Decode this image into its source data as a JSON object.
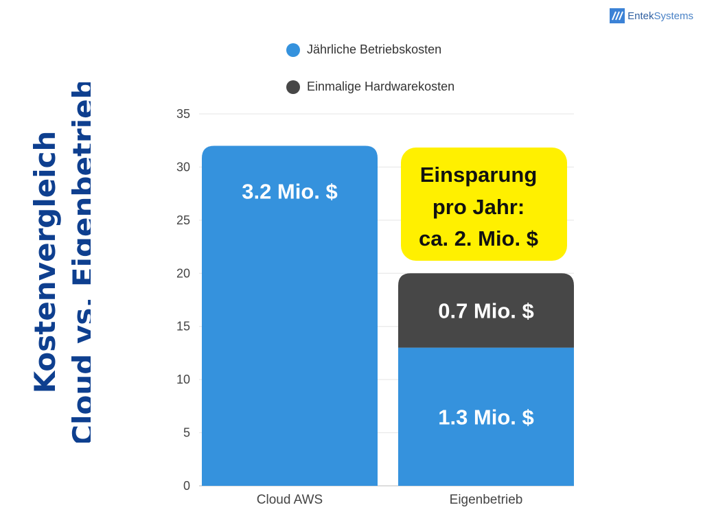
{
  "brand": {
    "logo_part1": "Entek",
    "logo_part2": "Systems"
  },
  "title": {
    "line1": "Kostenvergleich",
    "line2": "Cloud vs. Eigenbetrieb"
  },
  "colors": {
    "blue": "#3592dd",
    "dark": "#474747",
    "highlight": "#fff000",
    "title": "#0e3f8f"
  },
  "chart_data": {
    "type": "bar",
    "stacked": true,
    "categories": [
      "Cloud AWS",
      "Eigenbetrieb"
    ],
    "series": [
      {
        "name": "Jährliche Betriebskosten",
        "values": [
          32,
          13
        ],
        "labels": [
          "3.2 Mio. $",
          "1.3 Mio. $"
        ],
        "color": "#3592dd"
      },
      {
        "name": "Einmalige Hardwarekosten",
        "values": [
          0,
          7
        ],
        "labels": [
          "",
          "0.7 Mio. $"
        ],
        "color": "#474747"
      }
    ],
    "ylim": [
      0,
      35
    ],
    "yticks": [
      0,
      5,
      10,
      15,
      20,
      25,
      30,
      35
    ],
    "legend": "top",
    "grid": true,
    "annotation": {
      "lines": [
        "Einsparung",
        "pro Jahr:",
        "ca. 2. Mio. $"
      ]
    }
  }
}
